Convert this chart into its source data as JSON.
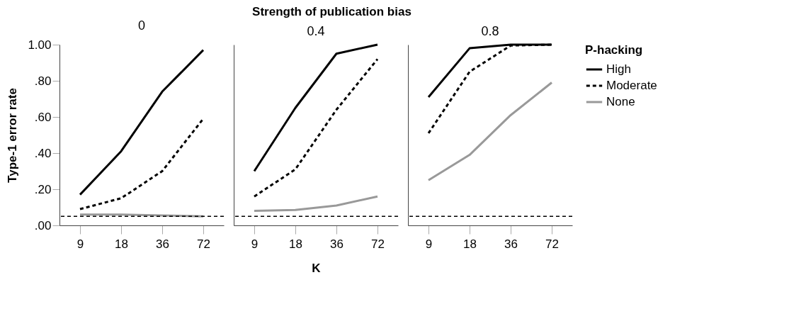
{
  "chart_data": [
    {
      "type": "line",
      "title": "0",
      "ylabel": "Type-1 error rate",
      "categories": [
        "9",
        "18",
        "36",
        "72"
      ],
      "ylim": [
        0,
        1
      ],
      "yticks": [
        {
          "value": 0,
          "label": ".00"
        },
        {
          "value": 0.2,
          "label": ".20"
        },
        {
          "value": 0.4,
          "label": ".40"
        },
        {
          "value": 0.6,
          "label": ".60"
        },
        {
          "value": 0.8,
          "label": ".80"
        },
        {
          "value": 1,
          "label": "1.00"
        }
      ],
      "grid": false,
      "legend": "top right",
      "series": [
        {
          "name": "High",
          "color": "#000000",
          "line_style": "solid",
          "values": [
            0.17,
            0.41,
            0.74,
            0.97
          ]
        },
        {
          "name": "Moderate",
          "color": "#000000",
          "line_style": "dashed",
          "values": [
            0.09,
            0.15,
            0.3,
            0.59
          ]
        },
        {
          "name": "None",
          "color": "#999999",
          "line_style": "solid",
          "values": [
            0.06,
            0.06,
            0.055,
            0.05
          ]
        }
      ],
      "ref_lines": [
        {
          "axis": "y",
          "value": 0.05,
          "color": "#000000",
          "line_style": "dashed"
        }
      ]
    },
    {
      "type": "line",
      "title": "0.4",
      "xlabel": "K",
      "annotations": [
        "Strength of publication bias"
      ],
      "categories": [
        "9",
        "18",
        "36",
        "72"
      ],
      "ylim": [
        0,
        1
      ],
      "tick_labels": "x",
      "grid": false,
      "legend": "top right",
      "series": [
        {
          "name": "High",
          "color": "#000000",
          "line_style": "solid",
          "values": [
            0.3,
            0.65,
            0.95,
            1.0
          ]
        },
        {
          "name": "Moderate",
          "color": "#000000",
          "line_style": "dashed",
          "values": [
            0.16,
            0.31,
            0.64,
            0.92
          ]
        },
        {
          "name": "None",
          "color": "#999999",
          "line_style": "solid",
          "values": [
            0.08,
            0.085,
            0.11,
            0.16
          ]
        }
      ],
      "ref_lines": [
        {
          "axis": "y",
          "value": 0.05,
          "color": "#000000",
          "line_style": "dashed"
        }
      ]
    },
    {
      "type": "line",
      "title": "0.8",
      "legend_title": "P-hacking",
      "categories": [
        "9",
        "18",
        "36",
        "72"
      ],
      "ylim": [
        0,
        1
      ],
      "tick_labels": "x",
      "grid": false,
      "legend": "top right",
      "series": [
        {
          "name": "High",
          "color": "#000000",
          "line_style": "solid",
          "values": [
            0.71,
            0.98,
            1.0,
            1.0
          ]
        },
        {
          "name": "Moderate",
          "color": "#000000",
          "line_style": "dashed",
          "values": [
            0.51,
            0.85,
            0.995,
            1.0
          ]
        },
        {
          "name": "None",
          "color": "#999999",
          "line_style": "solid",
          "values": [
            0.25,
            0.39,
            0.61,
            0.79
          ]
        }
      ],
      "ref_lines": [
        {
          "axis": "y",
          "value": 0.05,
          "color": "#000000",
          "line_style": "dashed"
        }
      ]
    }
  ]
}
